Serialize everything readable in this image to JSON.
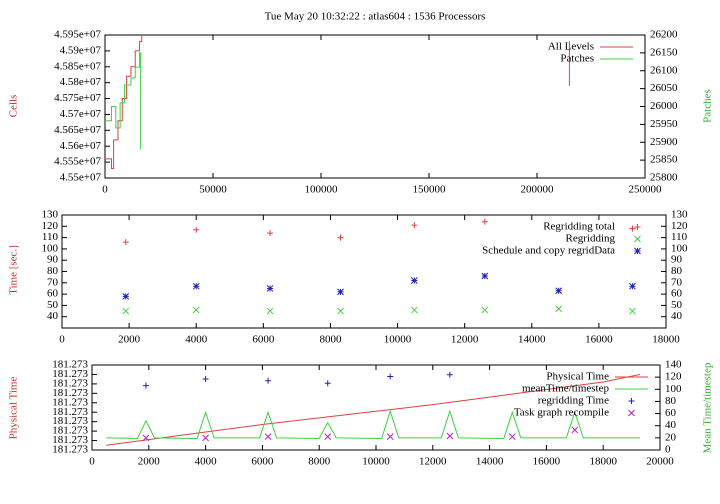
{
  "chart_data": [
    {
      "type": "line",
      "title": "Tue May 20 10:32:22 : atlas604 : 1536 Processors",
      "ylabel": "Cells",
      "y2label": "Patches",
      "step": true,
      "legend": "top-right",
      "xlim": [
        0,
        250000
      ],
      "xticks": [
        0,
        50000,
        100000,
        150000,
        200000,
        250000
      ],
      "ylim": [
        45500000,
        45950000
      ],
      "yticks": [
        {
          "value": 45500000,
          "label": "4.55e+07"
        },
        {
          "value": 45550000,
          "label": "4.555e+07"
        },
        {
          "value": 45600000,
          "label": "4.56e+07"
        },
        {
          "value": 45650000,
          "label": "4.565e+07"
        },
        {
          "value": 45700000,
          "label": "4.57e+07"
        },
        {
          "value": 45750000,
          "label": "4.575e+07"
        },
        {
          "value": 45800000,
          "label": "4.58e+07"
        },
        {
          "value": 45850000,
          "label": "4.585e+07"
        },
        {
          "value": 45900000,
          "label": "4.59e+07"
        },
        {
          "value": 45950000,
          "label": "4.595e+07"
        }
      ],
      "y2lim": [
        25800,
        26200
      ],
      "y2ticks": [
        25800,
        25850,
        25900,
        25950,
        26000,
        26050,
        26100,
        26150,
        26200
      ],
      "series": [
        {
          "name": "All Levels",
          "color": "#e04040",
          "x": [
            0,
            3000,
            4000,
            6000,
            8000,
            10000,
            12000,
            14000,
            16000,
            17000,
            215000,
            215000,
            215000
          ],
          "values": [
            45560000,
            45530000,
            45620000,
            45680000,
            45750000,
            45820000,
            45850000,
            45900000,
            45930000,
            45950000,
            null,
            45930000,
            45790000
          ]
        },
        {
          "name": "Patches",
          "color": "#40d040",
          "axis": "y2",
          "x": [
            0,
            3000,
            5000,
            7000,
            9000,
            12000,
            14000,
            16000,
            16500
          ],
          "values": [
            25960,
            26000,
            25940,
            26010,
            26060,
            26080,
            26110,
            26150,
            25880
          ]
        }
      ]
    },
    {
      "type": "scatter",
      "ylabel": "Time [sec.]",
      "legend": "top-right",
      "xlim": [
        0,
        18000
      ],
      "xticks": [
        0,
        2000,
        4000,
        6000,
        8000,
        10000,
        12000,
        14000,
        16000,
        18000
      ],
      "ylim": [
        30,
        130
      ],
      "yticks": [
        40,
        50,
        60,
        70,
        80,
        90,
        100,
        110,
        120,
        130
      ],
      "y2lim": [
        30,
        130
      ],
      "y2ticks": [
        40,
        50,
        60,
        70,
        80,
        90,
        100,
        110,
        120,
        130
      ],
      "series": [
        {
          "name": "Regridding total",
          "color": "#e04040",
          "marker": "+",
          "x": [
            1900,
            4000,
            6200,
            8300,
            10500,
            12600,
            17000
          ],
          "values": [
            106,
            117,
            114,
            110,
            121,
            124,
            118
          ]
        },
        {
          "name": "Regridding",
          "color": "#40d040",
          "marker": "x",
          "x": [
            1900,
            4000,
            6200,
            8300,
            10500,
            12600,
            14800,
            17000
          ],
          "values": [
            45,
            46,
            45,
            45,
            46,
            46,
            47,
            45
          ]
        },
        {
          "name": "Schedule and copy regridData",
          "color": "#2020c0",
          "marker": "*",
          "x": [
            1900,
            4000,
            6200,
            8300,
            10500,
            12600,
            14800,
            17000
          ],
          "values": [
            58,
            67,
            65,
            62,
            72,
            76,
            63,
            67
          ]
        }
      ]
    },
    {
      "type": "line",
      "ylabel": "Physical Time",
      "y2label": "Mean Time/timestep",
      "legend": "top-right",
      "xlim": [
        0,
        20000
      ],
      "xticks": [
        0,
        2000,
        4000,
        6000,
        8000,
        10000,
        12000,
        14000,
        16000,
        18000,
        20000
      ],
      "ylim": [
        181.2728,
        181.2737
      ],
      "yticks": [
        {
          "value": 181.2728,
          "label": "181.273"
        },
        {
          "value": 181.2729,
          "label": "181.273"
        },
        {
          "value": 181.273,
          "label": "181.273"
        },
        {
          "value": 181.2731,
          "label": "181.273"
        },
        {
          "value": 181.2732,
          "label": "181.273"
        },
        {
          "value": 181.2733,
          "label": "181.273"
        },
        {
          "value": 181.2734,
          "label": "181.273"
        },
        {
          "value": 181.2735,
          "label": "181.273"
        },
        {
          "value": 181.2736,
          "label": "181.273"
        },
        {
          "value": 181.2737,
          "label": "181.273"
        }
      ],
      "y2lim": [
        0,
        140
      ],
      "y2ticks": [
        0,
        20,
        40,
        60,
        80,
        100,
        120,
        140
      ],
      "series": [
        {
          "name": "Physical Time",
          "color": "#e04040",
          "x": [
            500,
            2000,
            4000,
            6000,
            8000,
            10000,
            12000,
            14000,
            16000,
            18000,
            19300
          ],
          "values": [
            181.27285,
            181.27291,
            181.27299,
            181.27307,
            181.27314,
            181.27321,
            181.27328,
            181.27336,
            181.27344,
            181.27352,
            181.2736
          ]
        },
        {
          "name": "meanTime/timestep",
          "color": "#40d040",
          "axis": "y2",
          "x": [
            500,
            1600,
            1900,
            2200,
            3700,
            4000,
            4300,
            5900,
            6200,
            6500,
            8000,
            8300,
            8600,
            10200,
            10500,
            10800,
            12300,
            12600,
            12900,
            14500,
            14800,
            15100,
            16700,
            17000,
            17300,
            19300
          ],
          "values": [
            20,
            19,
            48,
            20,
            19,
            62,
            20,
            20,
            62,
            20,
            19,
            45,
            20,
            19,
            64,
            20,
            20,
            64,
            20,
            19,
            62,
            20,
            20,
            62,
            20,
            20
          ]
        },
        {
          "name": "regridding Time",
          "color": "#2020c0",
          "axis": "y2",
          "marker": "+",
          "x": [
            1900,
            4000,
            6200,
            8300,
            10500,
            12600
          ],
          "values": [
            106,
            117,
            114,
            110,
            121,
            124
          ]
        },
        {
          "name": "Task graph recompile",
          "color": "#c020c0",
          "axis": "y2",
          "marker": "x",
          "x": [
            1900,
            4000,
            6200,
            8300,
            10500,
            12600,
            14800,
            17000
          ],
          "values": [
            20,
            20,
            22,
            22,
            22,
            23,
            22,
            33
          ]
        }
      ]
    }
  ]
}
